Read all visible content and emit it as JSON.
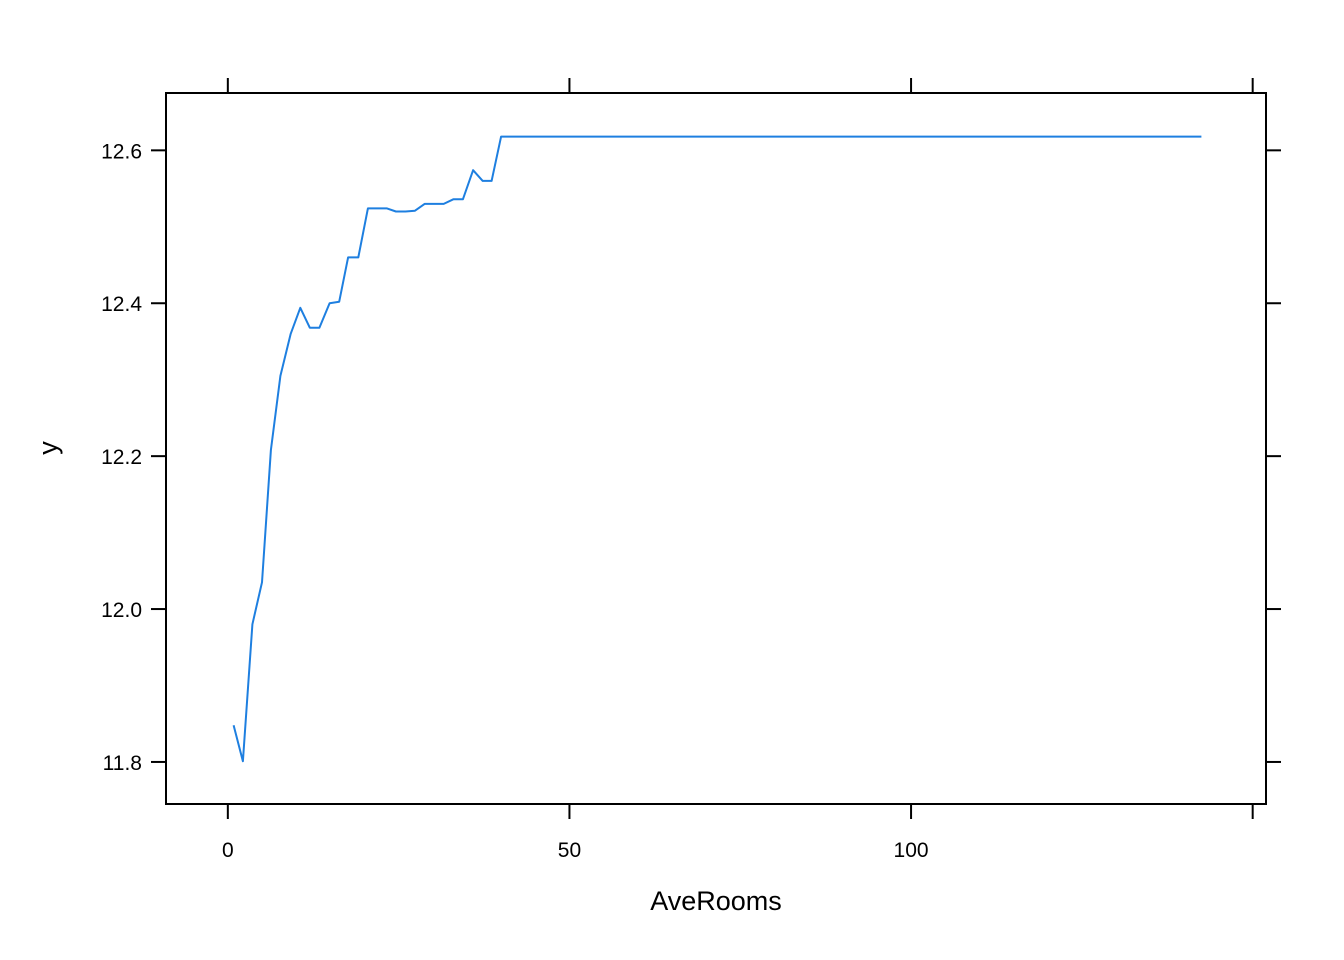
{
  "chart_data": {
    "type": "line",
    "title": "",
    "xlabel": "AveRooms",
    "ylabel": "y",
    "xlim": [
      -9.05,
      151.95
    ],
    "ylim": [
      11.745,
      12.675
    ],
    "x_ticks": [
      {
        "value": 0,
        "label": "0"
      },
      {
        "value": 50,
        "label": "50"
      },
      {
        "value": 100,
        "label": "100"
      }
    ],
    "y_ticks": [
      {
        "value": 11.8,
        "label": "11.8"
      },
      {
        "value": 12.0,
        "label": "12.0"
      },
      {
        "value": 12.2,
        "label": "12.2"
      },
      {
        "value": 12.4,
        "label": "12.4"
      },
      {
        "value": 12.6,
        "label": "12.6"
      }
    ],
    "grid": false,
    "legend": "none",
    "color": "#1E7FE0",
    "series": [
      {
        "x": [
          0.85,
          2.2,
          3.6,
          5.0,
          6.3,
          7.7,
          9.2,
          10.6,
          12.0,
          13.4,
          14.9,
          16.3,
          17.6,
          19.1,
          20.5,
          21.9,
          23.3,
          24.6,
          26.0,
          27.4,
          28.8,
          30.3,
          31.6,
          33.0,
          34.4,
          35.9,
          37.3,
          38.6,
          40.0,
          41.4,
          142.5
        ],
        "y": [
          11.848,
          11.801,
          11.98,
          12.035,
          12.208,
          12.305,
          12.36,
          12.394,
          12.368,
          12.368,
          12.4,
          12.402,
          12.46,
          12.46,
          12.524,
          12.524,
          12.524,
          12.52,
          12.52,
          12.521,
          12.53,
          12.53,
          12.53,
          12.536,
          12.536,
          12.574,
          12.56,
          12.56,
          12.618,
          12.618,
          12.618
        ]
      }
    ]
  }
}
